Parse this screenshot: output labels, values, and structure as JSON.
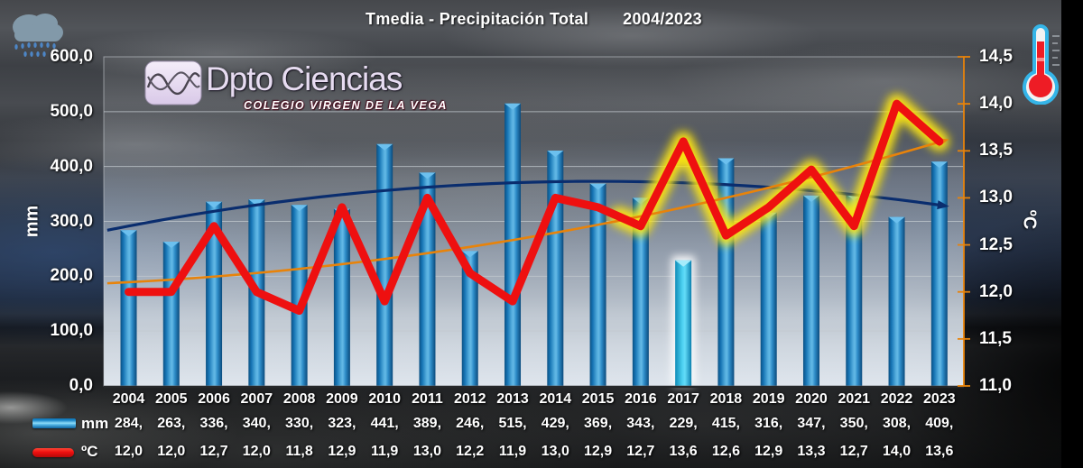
{
  "title": {
    "main": "Tmedia - Precipitación Total",
    "range": "2004/2023"
  },
  "logo": {
    "name": "Dpto Ciencias",
    "subtitle": "COLEGIO VIRGEN DE LA VEGA"
  },
  "icons": {
    "top_left": "rain-cloud-icon",
    "top_right": "thermometer-icon"
  },
  "colors": {
    "bar": "#1878bc",
    "bar_highlight": "#2fc2ec",
    "temperature_line": "#ee1010",
    "highlight_glow": "#ffe70f",
    "precip_trend": "#0a2d6e",
    "temp_trend": "#e8830a",
    "right_axis": "#e8830a",
    "gridline": "#c3c9cf",
    "text": "#ffffff"
  },
  "chart_data": {
    "type": "combo-bar-line",
    "title": "Tmedia - Precipitación Total 2004/2023",
    "categories": [
      "2004",
      "2005",
      "2006",
      "2007",
      "2008",
      "2009",
      "2010",
      "2011",
      "2012",
      "2013",
      "2014",
      "2015",
      "2016",
      "2017",
      "2018",
      "2019",
      "2020",
      "2021",
      "2022",
      "2023"
    ],
    "series": [
      {
        "name": "Precipitación total",
        "legend_label": "mm",
        "type": "bar",
        "axis": "left",
        "unit": "mm",
        "color": "#1878bc",
        "highlight": {
          "index": 13,
          "color": "#2fc2ec"
        },
        "values": [
          284,
          263,
          336,
          340,
          330,
          323,
          441,
          389,
          246,
          515,
          429,
          369,
          343,
          229,
          415,
          316,
          347,
          350,
          308,
          409
        ]
      },
      {
        "name": "Temperatura media",
        "legend_label": "ºC",
        "type": "line",
        "axis": "right",
        "unit": "ºC",
        "color": "#ee1010",
        "glow": {
          "from_index": 12,
          "color": "#ffe70f"
        },
        "values": [
          12.0,
          12.0,
          12.7,
          12.0,
          11.8,
          12.9,
          11.9,
          13.0,
          12.2,
          11.9,
          13.0,
          12.9,
          12.7,
          13.6,
          12.6,
          12.9,
          13.3,
          12.7,
          14.0,
          13.6
        ]
      },
      {
        "name": "Tendencia precipitación",
        "type": "trend-polynomial",
        "axis": "left",
        "color": "#0a2d6e",
        "source_index": 0
      },
      {
        "name": "Tendencia temperatura",
        "type": "trend-polynomial",
        "axis": "right",
        "color": "#e8830a",
        "source_index": 1
      }
    ],
    "axes": {
      "left": {
        "label": "mm",
        "min": 0,
        "max": 600,
        "step": 100,
        "tick_labels": [
          "600,0",
          "500,0",
          "400,0",
          "300,0",
          "200,0",
          "100,0",
          "0,0"
        ]
      },
      "right": {
        "label": "ºC",
        "min": 11,
        "max": 14.5,
        "step": 0.5,
        "tick_labels": [
          "14,5",
          "14,0",
          "13,5",
          "13,0",
          "12,5",
          "12,0",
          "11,5",
          "11,0"
        ]
      }
    },
    "grid": true,
    "legend_position": "bottom"
  },
  "legend": {
    "rows": [
      {
        "label": "mm",
        "swatch": "bar-cylinder",
        "values": [
          "284,",
          "263,",
          "336,",
          "340,",
          "330,",
          "323,",
          "441,",
          "389,",
          "246,",
          "515,",
          "429,",
          "369,",
          "343,",
          "229,",
          "415,",
          "316,",
          "347,",
          "350,",
          "308,",
          "409,"
        ]
      },
      {
        "label": "ºC",
        "swatch": "red-line",
        "values": [
          "12,0",
          "12,0",
          "12,7",
          "12,0",
          "11,8",
          "12,9",
          "11,9",
          "13,0",
          "12,2",
          "11,9",
          "13,0",
          "12,9",
          "12,7",
          "13,6",
          "12,6",
          "12,9",
          "13,3",
          "12,7",
          "14,0",
          "13,6"
        ]
      }
    ]
  }
}
